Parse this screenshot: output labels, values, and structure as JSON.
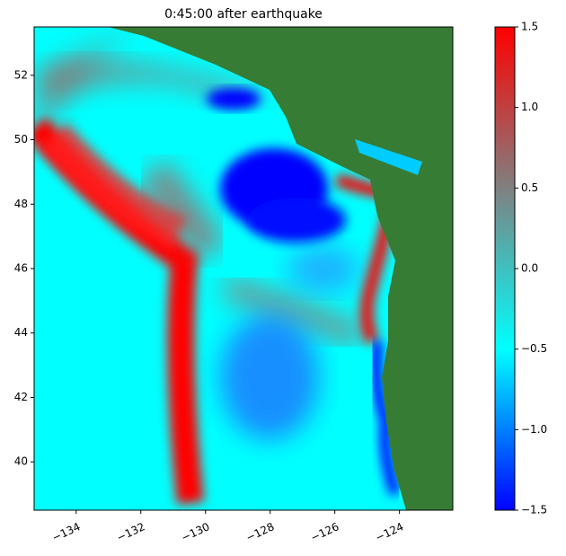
{
  "chart_data": {
    "type": "heatmap",
    "title": "0:45:00 after earthquake",
    "xlim": [
      -135.3,
      -122.35
    ],
    "ylim": [
      38.5,
      53.5
    ],
    "xticks": [
      {
        "value": -134,
        "label": "−134"
      },
      {
        "value": -132,
        "label": "−132"
      },
      {
        "value": -130,
        "label": "−130"
      },
      {
        "value": -128,
        "label": "−128"
      },
      {
        "value": -126,
        "label": "−126"
      },
      {
        "value": -124,
        "label": "−124"
      }
    ],
    "yticks": [
      40,
      42,
      44,
      46,
      48,
      50,
      52
    ],
    "clim": [
      -1.5,
      1.5
    ],
    "colormap": [
      "#0000ff",
      "#00ffff",
      "#808080",
      "#ff0000"
    ],
    "colorbar_ticks": [
      {
        "value": -1.5,
        "label": "−1.5"
      },
      {
        "value": -1,
        "label": "−1.0"
      },
      {
        "value": -0.5,
        "label": "−0.5"
      },
      {
        "value": 0,
        "label": "0.0"
      },
      0.5,
      {
        "value": 1,
        "label": "1.0"
      },
      1.5
    ]
  }
}
